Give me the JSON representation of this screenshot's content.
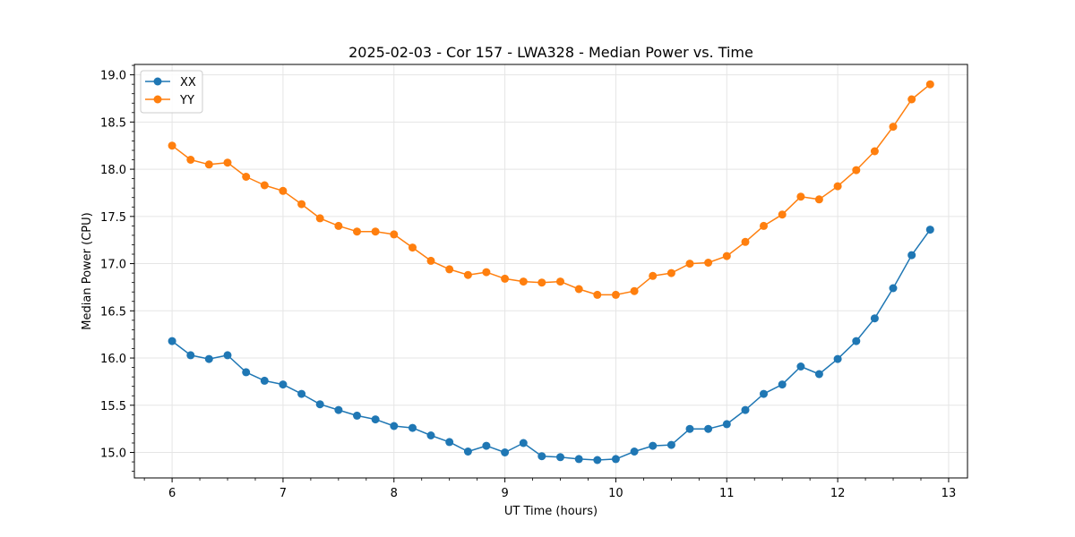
{
  "chart_data": {
    "type": "line",
    "title": "2025-02-03 - Cor 157 - LWA328 - Median Power vs. Time",
    "xlabel": "UT Time (hours)",
    "ylabel": "Median Power (CPU)",
    "xlim": [
      5.66,
      13.17
    ],
    "ylim": [
      14.73,
      19.11
    ],
    "xticks": [
      6,
      7,
      8,
      9,
      10,
      11,
      12,
      13
    ],
    "xtick_labels": [
      "6",
      "7",
      "8",
      "9",
      "10",
      "11",
      "12",
      "13"
    ],
    "yticks": [
      15.0,
      15.5,
      16.0,
      16.5,
      17.0,
      17.5,
      18.0,
      18.5,
      19.0
    ],
    "ytick_labels": [
      "15.0",
      "15.5",
      "16.0",
      "16.5",
      "17.0",
      "17.5",
      "18.0",
      "18.5",
      "19.0"
    ],
    "grid": true,
    "legend_position": "top-left",
    "x": [
      6.0,
      6.167,
      6.333,
      6.5,
      6.667,
      6.833,
      7.0,
      7.167,
      7.333,
      7.5,
      7.667,
      7.833,
      8.0,
      8.167,
      8.333,
      8.5,
      8.667,
      8.833,
      9.0,
      9.167,
      9.333,
      9.5,
      9.667,
      9.833,
      10.0,
      10.167,
      10.333,
      10.5,
      10.667,
      10.833,
      11.0,
      11.167,
      11.333,
      11.5,
      11.667,
      11.833,
      12.0,
      12.167,
      12.333,
      12.5,
      12.667,
      12.833
    ],
    "series": [
      {
        "name": "XX",
        "color": "#1f77b4",
        "values": [
          16.18,
          16.03,
          15.99,
          16.03,
          15.85,
          15.76,
          15.72,
          15.62,
          15.51,
          15.45,
          15.39,
          15.35,
          15.28,
          15.26,
          15.18,
          15.11,
          15.01,
          15.07,
          15.0,
          15.1,
          14.96,
          14.95,
          14.93,
          14.92,
          14.93,
          15.01,
          15.07,
          15.08,
          15.25,
          15.25,
          15.3,
          15.45,
          15.62,
          15.72,
          15.91,
          15.83,
          15.99,
          16.18,
          16.42,
          16.74,
          17.09,
          17.36
        ]
      },
      {
        "name": "YY",
        "color": "#ff7f0e",
        "values": [
          18.25,
          18.1,
          18.05,
          18.07,
          17.92,
          17.83,
          17.77,
          17.63,
          17.48,
          17.4,
          17.34,
          17.34,
          17.31,
          17.17,
          17.03,
          16.94,
          16.88,
          16.91,
          16.84,
          16.81,
          16.8,
          16.81,
          16.73,
          16.67,
          16.67,
          16.71,
          16.87,
          16.9,
          17.0,
          17.01,
          17.08,
          17.23,
          17.4,
          17.52,
          17.71,
          17.68,
          17.82,
          17.99,
          18.19,
          18.45,
          18.74,
          18.9
        ]
      }
    ]
  }
}
